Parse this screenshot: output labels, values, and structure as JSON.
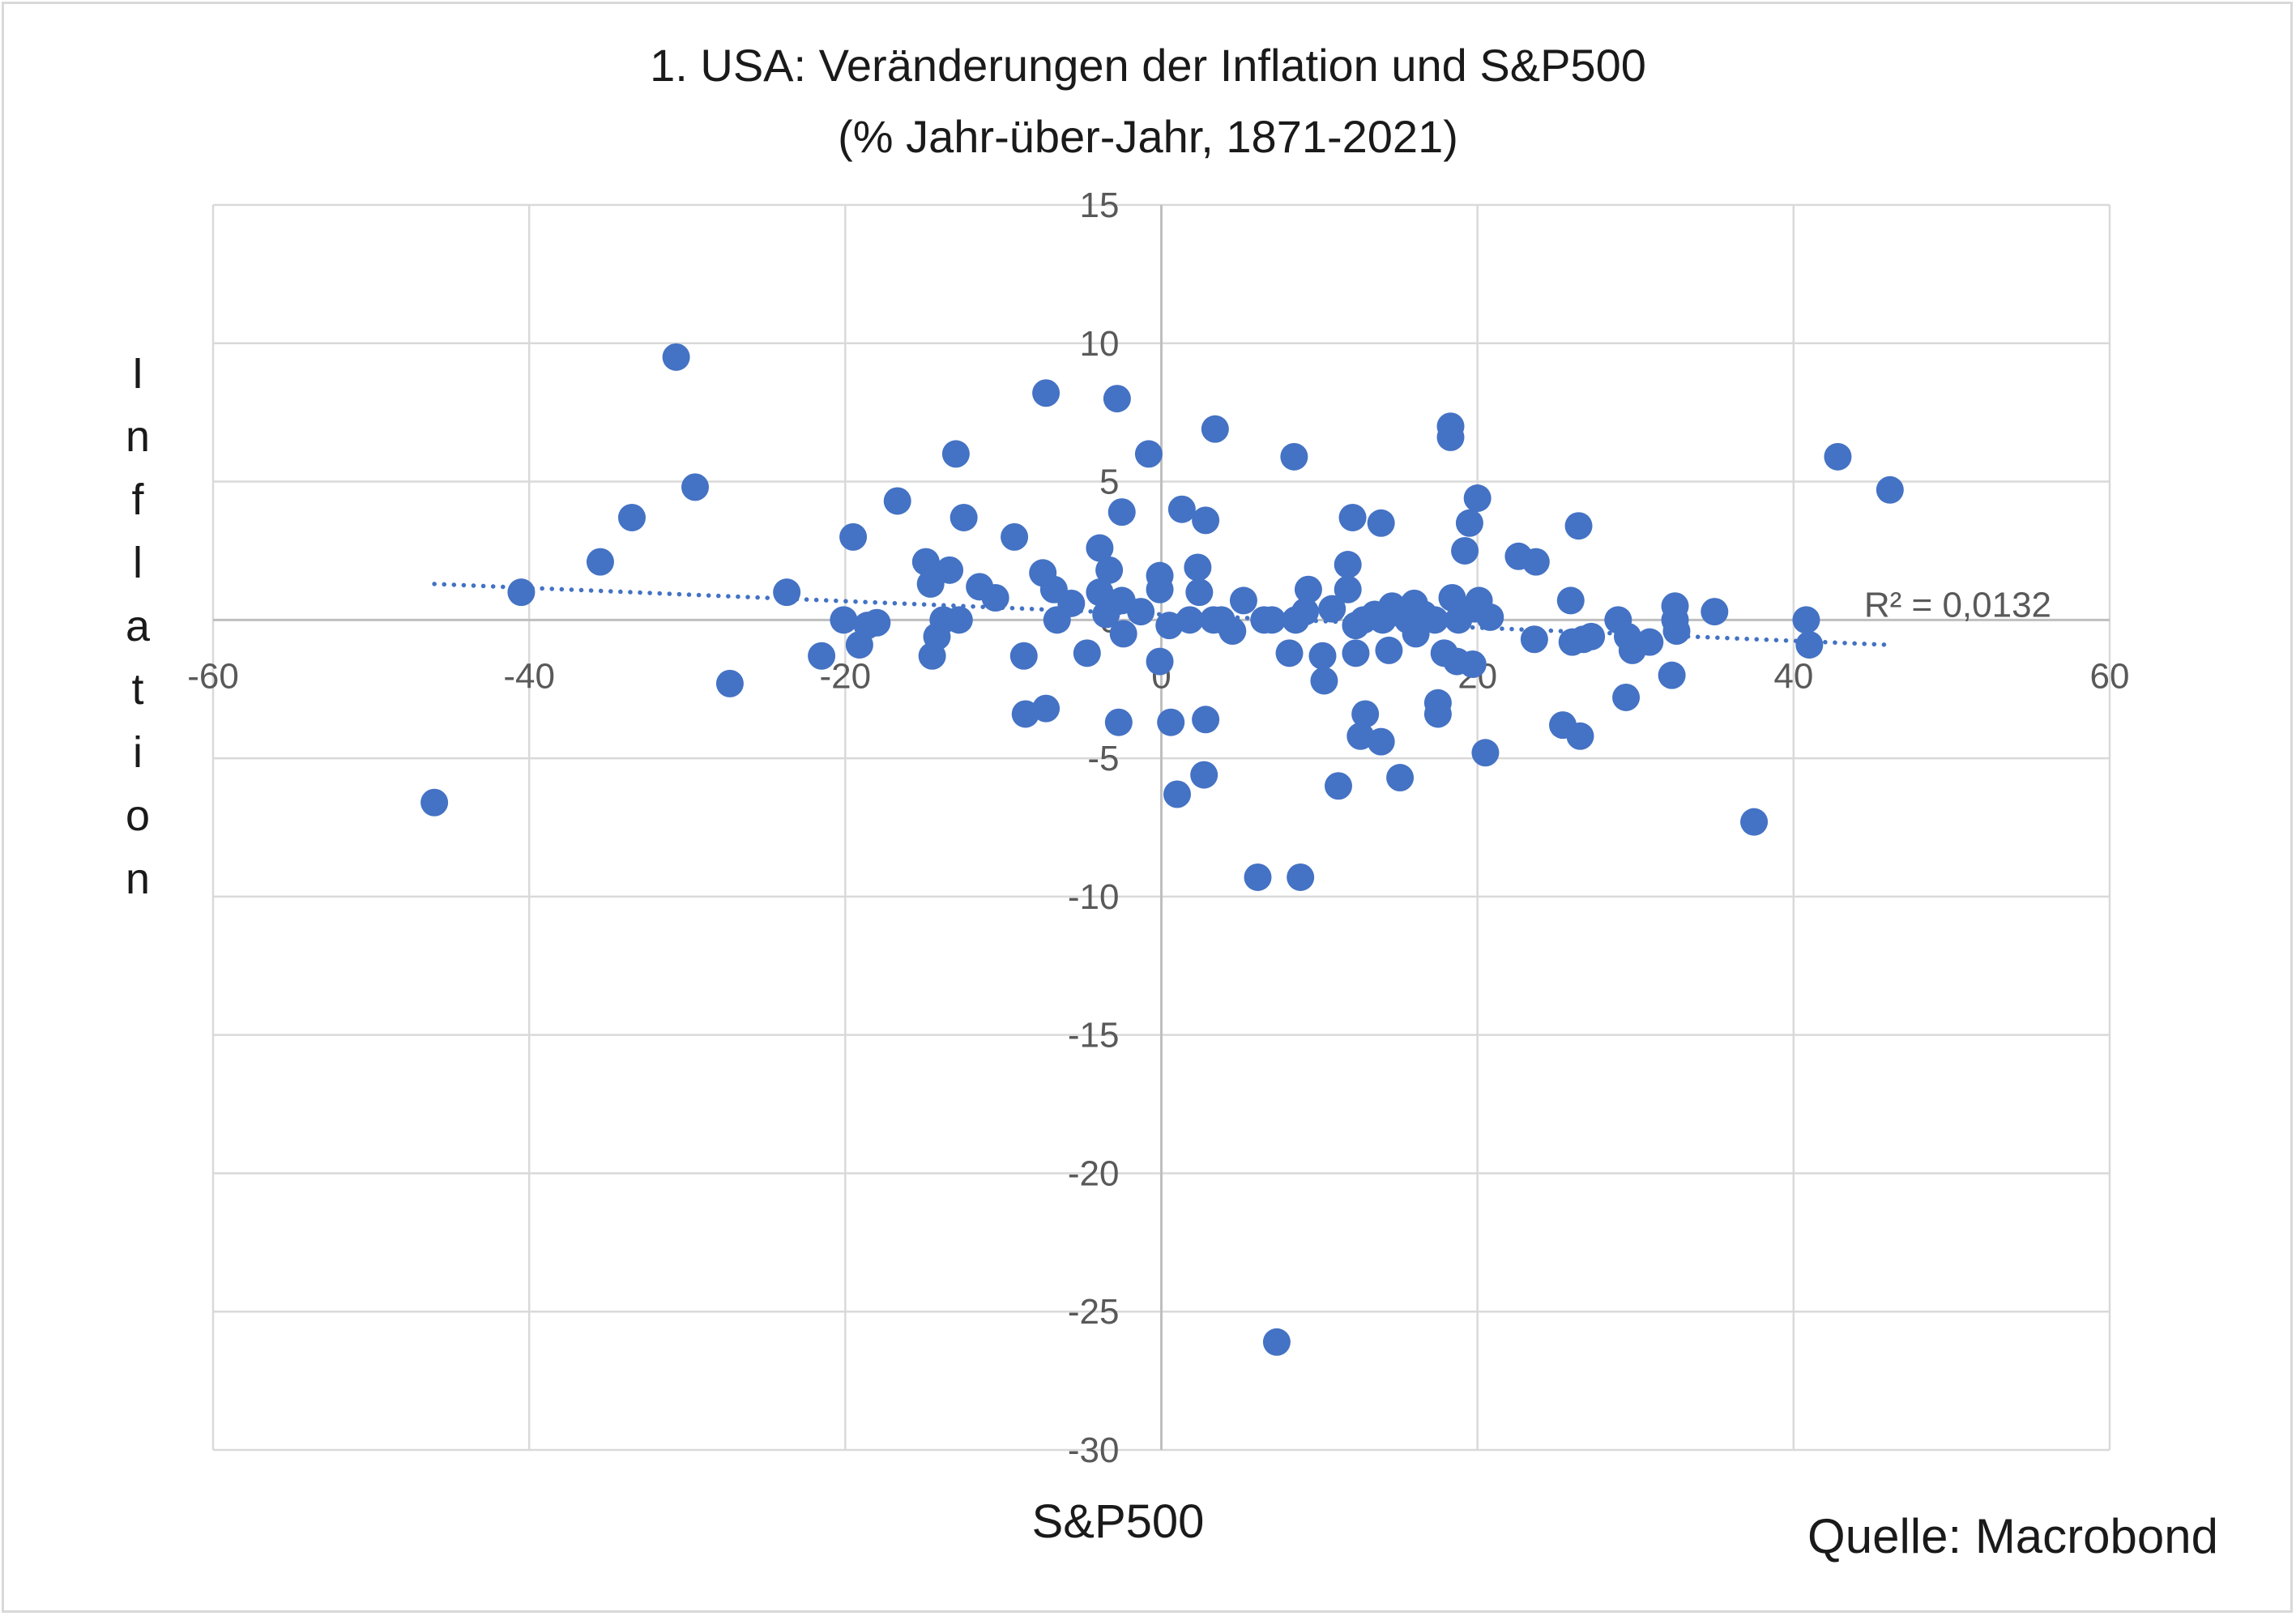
{
  "chart_data": {
    "type": "scatter",
    "title": "1. USA: Veränderungen der Inflation und S&P500",
    "subtitle": "(% Jahr-über-Jahr, 1871-2021)",
    "xlabel": "S&P500",
    "ylabel": "Inflation",
    "xlim": [
      -60,
      60
    ],
    "ylim": [
      -30,
      15
    ],
    "x_ticks": [
      "-60",
      "-40",
      "-20",
      "0",
      "20",
      "40",
      "60"
    ],
    "y_ticks": [
      "15",
      "10",
      "5",
      "0",
      "-5",
      "-10",
      "-15",
      "-20",
      "-25",
      "-30"
    ],
    "grid": true,
    "series_color": "#4472c4",
    "trendline": {
      "type": "linear",
      "style": "dotted",
      "x_from": -46,
      "x_to": 46,
      "y_from": 1.3,
      "y_to": -0.9,
      "r2_label": "R² = 0,0132"
    },
    "points": [
      [
        -46,
        -6.6
      ],
      [
        -40.5,
        1.0
      ],
      [
        -35.5,
        2.1
      ],
      [
        -33.5,
        3.7
      ],
      [
        -30.7,
        9.5
      ],
      [
        -29.5,
        4.8
      ],
      [
        -27.3,
        -2.3
      ],
      [
        -23.7,
        1.0
      ],
      [
        -21.5,
        -1.3
      ],
      [
        -20.1,
        0.0
      ],
      [
        -19.5,
        3.0
      ],
      [
        -19.1,
        -0.9
      ],
      [
        -18.6,
        -0.2
      ],
      [
        -18.0,
        -0.1
      ],
      [
        -16.7,
        4.3
      ],
      [
        -14.9,
        2.1
      ],
      [
        -14.6,
        1.3
      ],
      [
        -14.5,
        -1.3
      ],
      [
        -14.2,
        -0.6
      ],
      [
        -13.8,
        0.0
      ],
      [
        -13.4,
        1.8
      ],
      [
        -13.0,
        6.0
      ],
      [
        -12.8,
        0.0
      ],
      [
        -12.5,
        3.7
      ],
      [
        -11.5,
        1.2
      ],
      [
        -10.5,
        0.8
      ],
      [
        -9.3,
        3.0
      ],
      [
        -8.7,
        -1.3
      ],
      [
        -8.6,
        -3.4
      ],
      [
        -7.5,
        1.7
      ],
      [
        -7.3,
        8.2
      ],
      [
        -7.3,
        -3.2
      ],
      [
        -6.8,
        1.1
      ],
      [
        -6.6,
        0.0
      ],
      [
        -5.7,
        0.6
      ],
      [
        -4.7,
        -1.2
      ],
      [
        -3.9,
        2.6
      ],
      [
        -3.9,
        1.0
      ],
      [
        -3.5,
        0.2
      ],
      [
        -3.3,
        1.8
      ],
      [
        -2.8,
        8.0
      ],
      [
        -2.7,
        -3.7
      ],
      [
        -2.5,
        3.9
      ],
      [
        -2.5,
        0.7
      ],
      [
        -2.4,
        -0.5
      ],
      [
        -1.3,
        0.3
      ],
      [
        -0.8,
        6.0
      ],
      [
        -0.1,
        1.6
      ],
      [
        -0.1,
        1.1
      ],
      [
        -0.1,
        -1.5
      ],
      [
        0.5,
        -0.2
      ],
      [
        0.6,
        -3.7
      ],
      [
        1.0,
        -6.3
      ],
      [
        1.3,
        4.0
      ],
      [
        1.8,
        0.0
      ],
      [
        2.3,
        1.9
      ],
      [
        2.4,
        1.0
      ],
      [
        2.7,
        -5.6
      ],
      [
        2.8,
        3.6
      ],
      [
        2.8,
        -3.6
      ],
      [
        3.3,
        0.0
      ],
      [
        3.4,
        6.9
      ],
      [
        3.8,
        0.0
      ],
      [
        4.5,
        -0.4
      ],
      [
        5.2,
        0.7
      ],
      [
        6.1,
        -9.3
      ],
      [
        6.5,
        0.0
      ],
      [
        7.0,
        0.0
      ],
      [
        7.3,
        -26.1
      ],
      [
        8.1,
        -1.2
      ],
      [
        8.4,
        5.9
      ],
      [
        8.5,
        0.0
      ],
      [
        8.8,
        -9.3
      ],
      [
        9.1,
        0.3
      ],
      [
        9.3,
        1.1
      ],
      [
        10.2,
        -1.3
      ],
      [
        10.3,
        -2.2
      ],
      [
        10.8,
        0.4
      ],
      [
        11.2,
        -6.0
      ],
      [
        11.8,
        2.0
      ],
      [
        11.8,
        1.1
      ],
      [
        12.1,
        3.7
      ],
      [
        12.3,
        -0.2
      ],
      [
        12.3,
        -1.2
      ],
      [
        12.6,
        -4.2
      ],
      [
        12.8,
        0.0
      ],
      [
        12.9,
        -3.4
      ],
      [
        13.5,
        0.2
      ],
      [
        13.9,
        -4.4
      ],
      [
        13.9,
        3.5
      ],
      [
        14.0,
        0.0
      ],
      [
        14.4,
        -1.1
      ],
      [
        14.6,
        0.5
      ],
      [
        15.1,
        -5.7
      ],
      [
        15.3,
        0.3
      ],
      [
        15.6,
        0.0
      ],
      [
        16.0,
        0.6
      ],
      [
        16.1,
        -0.5
      ],
      [
        16.6,
        0.2
      ],
      [
        17.3,
        0.0
      ],
      [
        17.5,
        -3.0
      ],
      [
        17.5,
        -3.4
      ],
      [
        17.9,
        -1.2
      ],
      [
        18.3,
        7.0
      ],
      [
        18.3,
        6.6
      ],
      [
        18.4,
        0.8
      ],
      [
        18.7,
        -1.5
      ],
      [
        18.8,
        0.0
      ],
      [
        19.2,
        2.5
      ],
      [
        19.5,
        3.5
      ],
      [
        19.7,
        -1.6
      ],
      [
        19.8,
        0.4
      ],
      [
        20.0,
        4.4
      ],
      [
        20.1,
        0.7
      ],
      [
        20.5,
        -4.8
      ],
      [
        20.8,
        0.1
      ],
      [
        22.6,
        2.3
      ],
      [
        23.6,
        -0.7
      ],
      [
        23.7,
        2.1
      ],
      [
        25.4,
        -3.8
      ],
      [
        25.9,
        0.7
      ],
      [
        26.0,
        -0.8
      ],
      [
        26.4,
        3.4
      ],
      [
        26.5,
        -4.2
      ],
      [
        26.7,
        -0.7
      ],
      [
        27.2,
        -0.6
      ],
      [
        28.9,
        0.0
      ],
      [
        29.4,
        -2.8
      ],
      [
        29.5,
        -0.6
      ],
      [
        29.8,
        -1.1
      ],
      [
        30.9,
        -0.8
      ],
      [
        32.3,
        -2.0
      ],
      [
        32.5,
        0.5
      ],
      [
        32.5,
        0.0
      ],
      [
        32.6,
        -0.4
      ],
      [
        35.0,
        0.3
      ],
      [
        37.5,
        -7.3
      ],
      [
        40.8,
        0.0
      ],
      [
        41.0,
        -0.9
      ],
      [
        42.8,
        5.9
      ],
      [
        46.1,
        4.7
      ]
    ]
  },
  "footer": {
    "source": "Quelle: Macrobond"
  }
}
